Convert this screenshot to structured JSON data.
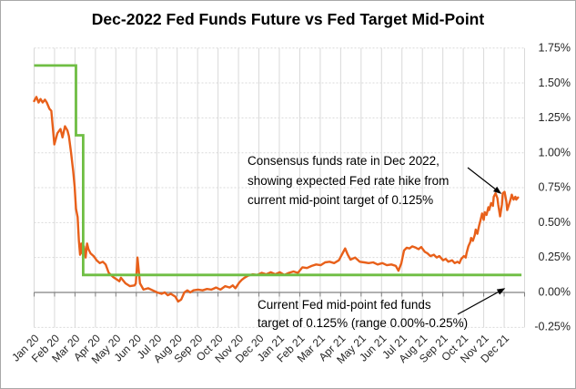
{
  "colors": {
    "future_line": "#E8601A",
    "target_line": "#6FBE44",
    "gridline": "#D9D9D9",
    "zero_axis": "#808080",
    "label_text": "#262626",
    "annotation_text": "#000000",
    "frame_border": "#A9A9A9",
    "background": "#FFFFFF"
  },
  "chart_data": {
    "type": "line",
    "title": "Dec-2022 Fed Funds Future vs Fed Target Mid-Point",
    "xlabel": "",
    "ylabel": "",
    "x_unit": "months since Jan 2020",
    "ylim": [
      -0.25,
      1.75
    ],
    "y_step": 0.25,
    "grid": true,
    "legend_position": "none",
    "y_axis_side": "right",
    "x_axis": {
      "labels": [
        "Jan 20",
        "Feb 20",
        "Mar 20",
        "Apr 20",
        "May 20",
        "Jun 20",
        "Jul 20",
        "Aug 20",
        "Sep 20",
        "Oct 20",
        "Nov 20",
        "Dec 20",
        "Jan 21",
        "Feb 21",
        "Mar 21",
        "Apr 21",
        "May 21",
        "Jun 21",
        "Jul 21",
        "Aug 21",
        "Sep 21",
        "Oct 21",
        "Nov 21",
        "Dec 21"
      ]
    },
    "y_axis": {
      "labels": [
        "1.75%",
        "1.50%",
        "1.25%",
        "1.00%",
        "0.75%",
        "0.50%",
        "0.25%",
        "0.00%",
        "-0.25%"
      ],
      "values": [
        1.75,
        1.5,
        1.25,
        1.0,
        0.75,
        0.5,
        0.25,
        0.0,
        -0.25
      ]
    },
    "series": [
      {
        "name": "Dec-2022 Fed Funds Future (consensus rate, %)",
        "color": "#E8601A",
        "style": "line",
        "points": [
          [
            0,
            1.37
          ],
          [
            0.11,
            1.4
          ],
          [
            0.22,
            1.36
          ],
          [
            0.31,
            1.385
          ],
          [
            0.42,
            1.36
          ],
          [
            0.53,
            1.38
          ],
          [
            0.62,
            1.36
          ],
          [
            0.75,
            1.315
          ],
          [
            0.84,
            1.3
          ],
          [
            0.99,
            1.06
          ],
          [
            1.14,
            1.14
          ],
          [
            1.29,
            1.17
          ],
          [
            1.39,
            1.11
          ],
          [
            1.51,
            1.19
          ],
          [
            1.63,
            1.16
          ],
          [
            1.7,
            1.12
          ],
          [
            1.81,
            1.0
          ],
          [
            1.91,
            0.87
          ],
          [
            1.98,
            0.76
          ],
          [
            2.05,
            0.6
          ],
          [
            2.13,
            0.54
          ],
          [
            2.19,
            0.37
          ],
          [
            2.25,
            0.27
          ],
          [
            2.31,
            0.35
          ],
          [
            2.36,
            0.28
          ],
          [
            2.44,
            0.33
          ],
          [
            2.52,
            0.25
          ],
          [
            2.59,
            0.35
          ],
          [
            2.66,
            0.31
          ],
          [
            2.76,
            0.28
          ],
          [
            2.91,
            0.26
          ],
          [
            3.06,
            0.23
          ],
          [
            3.21,
            0.21
          ],
          [
            3.36,
            0.22
          ],
          [
            3.5,
            0.2
          ],
          [
            3.65,
            0.14
          ],
          [
            3.87,
            0.11
          ],
          [
            4.17,
            0.08
          ],
          [
            4.25,
            0.105
          ],
          [
            4.47,
            0.065
          ],
          [
            4.69,
            0.045
          ],
          [
            4.91,
            0.05
          ],
          [
            4.98,
            0.065
          ],
          [
            5.06,
            0.25
          ],
          [
            5.18,
            0.065
          ],
          [
            5.35,
            0.02
          ],
          [
            5.58,
            0.03
          ],
          [
            5.8,
            0.015
          ],
          [
            6.02,
            0.0
          ],
          [
            6.24,
            -0.01
          ],
          [
            6.39,
            0.0
          ],
          [
            6.54,
            -0.02
          ],
          [
            6.69,
            -0.01
          ],
          [
            6.91,
            -0.03
          ],
          [
            7.05,
            -0.065
          ],
          [
            7.2,
            -0.05
          ],
          [
            7.35,
            0.0
          ],
          [
            7.5,
            0.015
          ],
          [
            7.64,
            0.0
          ],
          [
            7.79,
            0.015
          ],
          [
            8.02,
            0.02
          ],
          [
            8.24,
            0.015
          ],
          [
            8.46,
            0.025
          ],
          [
            8.68,
            0.02
          ],
          [
            8.9,
            0.035
          ],
          [
            9.12,
            0.02
          ],
          [
            9.35,
            0.045
          ],
          [
            9.57,
            0.035
          ],
          [
            9.72,
            0.05
          ],
          [
            9.85,
            0.03
          ],
          [
            10.03,
            0.07
          ],
          [
            10.16,
            0.09
          ],
          [
            10.29,
            0.105
          ],
          [
            10.47,
            0.12
          ],
          [
            10.69,
            0.13
          ],
          [
            10.91,
            0.125
          ],
          [
            11.14,
            0.14
          ],
          [
            11.36,
            0.13
          ],
          [
            11.58,
            0.145
          ],
          [
            11.8,
            0.13
          ],
          [
            12.02,
            0.145
          ],
          [
            12.24,
            0.125
          ],
          [
            12.47,
            0.14
          ],
          [
            12.69,
            0.15
          ],
          [
            12.91,
            0.14
          ],
          [
            13.13,
            0.18
          ],
          [
            13.35,
            0.175
          ],
          [
            13.58,
            0.19
          ],
          [
            13.8,
            0.2
          ],
          [
            14.02,
            0.195
          ],
          [
            14.24,
            0.215
          ],
          [
            14.46,
            0.22
          ],
          [
            14.68,
            0.21
          ],
          [
            14.91,
            0.23
          ],
          [
            15.13,
            0.29
          ],
          [
            15.22,
            0.315
          ],
          [
            15.35,
            0.27
          ],
          [
            15.48,
            0.235
          ],
          [
            15.71,
            0.25
          ],
          [
            15.93,
            0.22
          ],
          [
            16.15,
            0.215
          ],
          [
            16.37,
            0.21
          ],
          [
            16.59,
            0.215
          ],
          [
            16.81,
            0.2
          ],
          [
            17.04,
            0.21
          ],
          [
            17.26,
            0.195
          ],
          [
            17.48,
            0.2
          ],
          [
            17.7,
            0.19
          ],
          [
            17.83,
            0.155
          ],
          [
            17.97,
            0.21
          ],
          [
            18.1,
            0.3
          ],
          [
            18.23,
            0.32
          ],
          [
            18.37,
            0.315
          ],
          [
            18.5,
            0.33
          ],
          [
            18.68,
            0.32
          ],
          [
            18.81,
            0.31
          ],
          [
            18.94,
            0.325
          ],
          [
            19.12,
            0.29
          ],
          [
            19.25,
            0.28
          ],
          [
            19.39,
            0.26
          ],
          [
            19.56,
            0.27
          ],
          [
            19.7,
            0.25
          ],
          [
            19.83,
            0.26
          ],
          [
            20.01,
            0.23
          ],
          [
            20.14,
            0.24
          ],
          [
            20.27,
            0.22
          ],
          [
            20.45,
            0.23
          ],
          [
            20.58,
            0.21
          ],
          [
            20.72,
            0.22
          ],
          [
            20.81,
            0.21
          ],
          [
            20.9,
            0.24
          ],
          [
            21.03,
            0.26
          ],
          [
            21.12,
            0.25
          ],
          [
            21.16,
            0.28
          ],
          [
            21.25,
            0.33
          ],
          [
            21.34,
            0.36
          ],
          [
            21.38,
            0.39
          ],
          [
            21.47,
            0.37
          ],
          [
            21.56,
            0.41
          ],
          [
            21.61,
            0.45
          ],
          [
            21.69,
            0.42
          ],
          [
            21.78,
            0.48
          ],
          [
            21.83,
            0.51
          ],
          [
            21.92,
            0.565
          ],
          [
            22.0,
            0.52
          ],
          [
            22.05,
            0.575
          ],
          [
            22.14,
            0.555
          ],
          [
            22.23,
            0.61
          ],
          [
            22.27,
            0.59
          ],
          [
            22.36,
            0.64
          ],
          [
            22.45,
            0.62
          ],
          [
            22.49,
            0.685
          ],
          [
            22.58,
            0.71
          ],
          [
            22.67,
            0.675
          ],
          [
            22.71,
            0.63
          ],
          [
            22.8,
            0.545
          ],
          [
            22.89,
            0.63
          ],
          [
            22.93,
            0.71
          ],
          [
            23.02,
            0.72
          ],
          [
            23.11,
            0.65
          ],
          [
            23.15,
            0.59
          ],
          [
            23.24,
            0.63
          ],
          [
            23.33,
            0.675
          ],
          [
            23.37,
            0.7
          ],
          [
            23.46,
            0.665
          ],
          [
            23.55,
            0.685
          ],
          [
            23.59,
            0.665
          ],
          [
            23.68,
            0.68
          ]
        ]
      },
      {
        "name": "Fed Target Mid-Point (%)",
        "color": "#6FBE44",
        "style": "step",
        "points": [
          [
            0,
            1.625
          ],
          [
            2.05,
            1.625
          ],
          [
            2.05,
            1.125
          ],
          [
            2.4,
            1.125
          ],
          [
            2.4,
            0.125
          ],
          [
            23.85,
            0.125
          ]
        ]
      }
    ],
    "annotations": [
      {
        "lines": [
          "Consensus funds rate in Dec 2022,",
          "showing expected Fed rate hike from",
          "current  mid-point target of 0.125%"
        ],
        "arrow": {
          "from": [
            513,
            183
          ],
          "to": [
            549,
            211
          ]
        }
      },
      {
        "lines": [
          "Current Fed mid-point fed funds",
          "target of 0.125% (range 0.00%-0.25%)"
        ],
        "arrow": {
          "from": [
            502,
            344
          ],
          "to": [
            553,
            316
          ]
        }
      }
    ]
  }
}
